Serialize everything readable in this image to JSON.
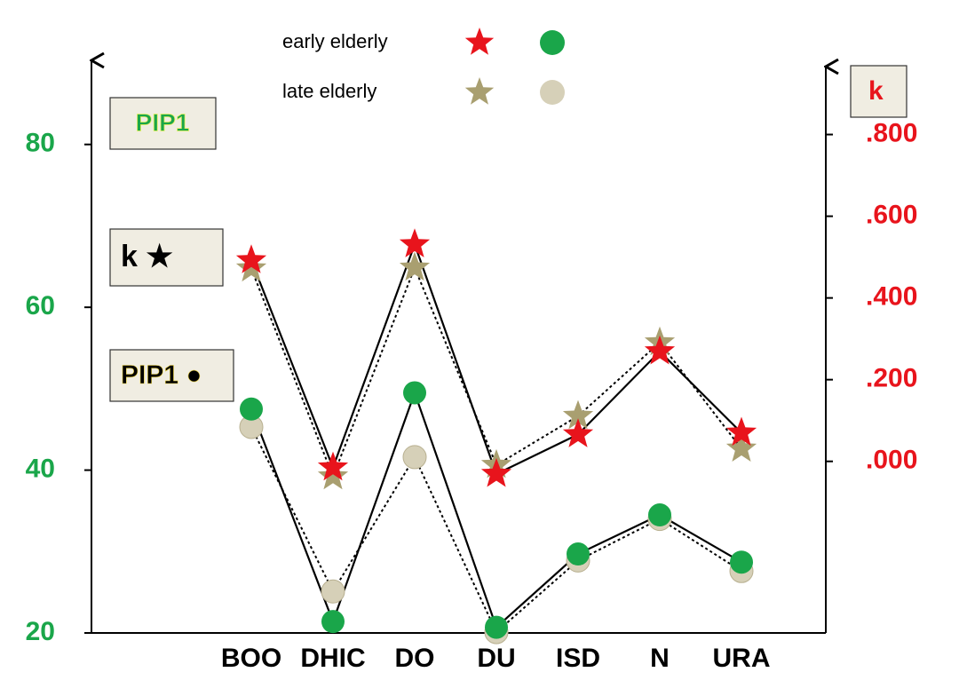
{
  "chart_data": {
    "type": "line",
    "categories": [
      "BOO",
      "DHIC",
      "DO",
      "DU",
      "ISD",
      "N",
      "URA"
    ],
    "ylim": [
      20,
      90
    ],
    "yticks": [
      20,
      40,
      60,
      80
    ],
    "y2lim": [
      -0.42,
      0.975
    ],
    "y2ticks": [
      {
        "value": 0,
        "label": ".000"
      },
      {
        "value": 0.2,
        "label": ".200"
      },
      {
        "value": 0.4,
        "label": ".400"
      },
      {
        "value": 0.6,
        "label": ".600"
      },
      {
        "value": 0.8,
        "label": ".800"
      }
    ],
    "y_axis_label": "PIP1",
    "y2_axis_label": "k",
    "annotations": [
      "k ★",
      "PIP1 ●"
    ],
    "series": [
      {
        "name": "early elderly",
        "k_color": "#e8141c",
        "pip1_color": "#1aa64a",
        "line_style": "solid",
        "k_values": [
          0.492,
          -0.015,
          0.531,
          -0.031,
          0.066,
          0.269,
          0.07
        ],
        "pip1_values": [
          47.5,
          21.4,
          49.5,
          20.7,
          29.7,
          34.5,
          28.7
        ]
      },
      {
        "name": "late elderly",
        "k_color": "#a99f70",
        "pip1_color": "#d6d0b8",
        "line_style": "dotted",
        "k_values": [
          0.472,
          -0.037,
          0.474,
          -0.009,
          0.111,
          0.291,
          0.031
        ],
        "pip1_values": [
          45.3,
          25.1,
          41.6,
          20.1,
          28.9,
          34.0,
          27.6
        ]
      }
    ]
  }
}
